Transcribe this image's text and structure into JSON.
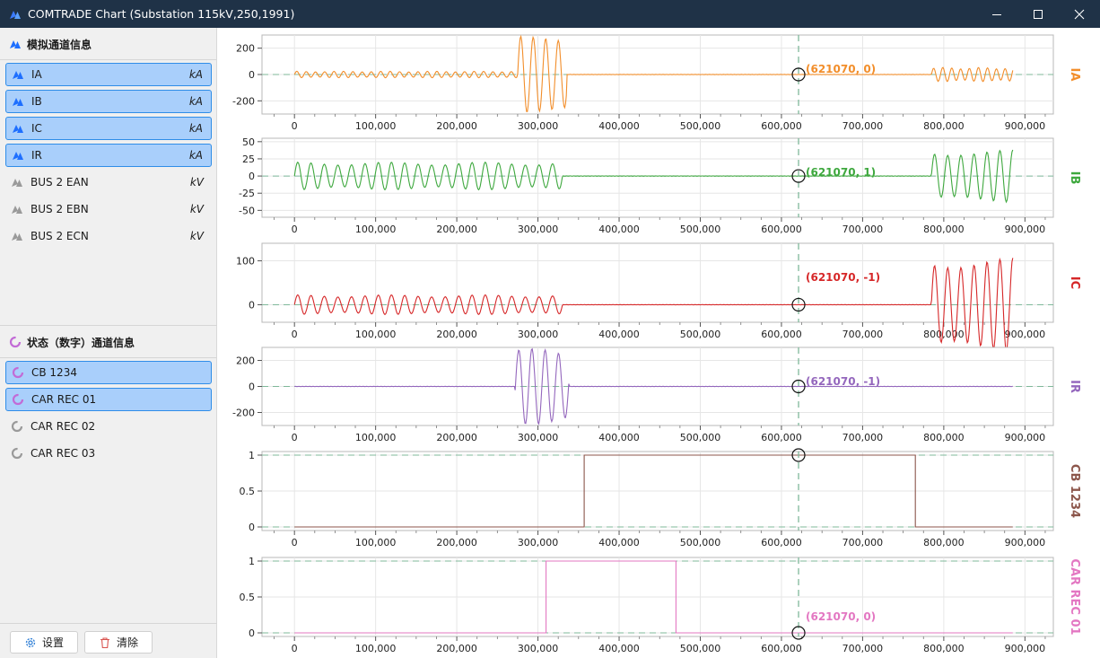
{
  "window": {
    "title": "COMTRADE Chart (Substation 115kV,250,1991)",
    "app_icon": "app-logo-icon",
    "controls": [
      "minimize-icon",
      "maximize-icon",
      "close-icon"
    ]
  },
  "sidebar": {
    "analog_header": "模拟通道信息",
    "analog_channels": [
      {
        "label": "IA",
        "unit": "kA",
        "selected": true
      },
      {
        "label": "IB",
        "unit": "kA",
        "selected": true
      },
      {
        "label": "IC",
        "unit": "kA",
        "selected": true
      },
      {
        "label": "IR",
        "unit": "kA",
        "selected": true
      },
      {
        "label": "BUS 2 EAN",
        "unit": "kV",
        "selected": false
      },
      {
        "label": "BUS 2 EBN",
        "unit": "kV",
        "selected": false
      },
      {
        "label": "BUS 2 ECN",
        "unit": "kV",
        "selected": false
      }
    ],
    "digital_header": "状态（数字）通道信息",
    "digital_channels": [
      {
        "label": "CB 1234",
        "selected": true
      },
      {
        "label": "CAR REC 01",
        "selected": true
      },
      {
        "label": "CAR REC 02",
        "selected": false
      },
      {
        "label": "CAR REC 03",
        "selected": false
      }
    ],
    "settings_label": "设置",
    "clear_label": "清除"
  },
  "colors": {
    "IA": "#f28e2b",
    "IB": "#3ea83e",
    "IC": "#d62728",
    "IR": "#9467bd",
    "CB 1234": "#8c564b",
    "CAR REC 01": "#e377c2",
    "accent": "#2f8de8",
    "cursor": "#7fb89a"
  },
  "chart_data": [
    {
      "type": "line",
      "name": "IA",
      "xlim": [
        0,
        900000
      ],
      "ylim": [
        -300,
        300
      ],
      "yticks": [
        -200,
        0,
        200
      ],
      "cursor_x": 621070,
      "cursor_label": "(621070, 0)",
      "segments": [
        {
          "x": [
            0,
            275000
          ],
          "amp": 22,
          "period": 11500
        },
        {
          "x": [
            275000,
            335000
          ],
          "amp": 260,
          "period": 15500
        },
        {
          "x": [
            785000,
            885000
          ],
          "amp": 48,
          "period": 11000
        }
      ]
    },
    {
      "type": "line",
      "name": "IB",
      "xlim": [
        0,
        900000
      ],
      "ylim": [
        -60,
        55
      ],
      "yticks": [
        -50,
        -25,
        0,
        25,
        50
      ],
      "cursor_x": 621070,
      "cursor_label": "(621070, 1)",
      "segments": [
        {
          "x": [
            0,
            330000
          ],
          "amp": 18,
          "period": 16500
        },
        {
          "x": [
            785000,
            885000
          ],
          "amp": 34,
          "period": 16000
        }
      ]
    },
    {
      "type": "line",
      "name": "IC",
      "xlim": [
        0,
        900000
      ],
      "ylim": [
        -40,
        140
      ],
      "yticks": [
        0,
        100
      ],
      "cursor_x": 621070,
      "cursor_label": "(621070, -1)",
      "segments": [
        {
          "x": [
            0,
            330000
          ],
          "amp": 20,
          "period": 16500
        },
        {
          "x": [
            785000,
            885000
          ],
          "amp": 95,
          "period": 16000
        }
      ]
    },
    {
      "type": "line",
      "name": "IR",
      "xlim": [
        0,
        900000
      ],
      "ylim": [
        -300,
        300
      ],
      "yticks": [
        -200,
        0,
        200
      ],
      "cursor_x": 621070,
      "cursor_label": "(621070, -1)",
      "segments": [
        {
          "x": [
            272000,
            338000
          ],
          "amp": 260,
          "period": 16500
        }
      ]
    },
    {
      "type": "line",
      "name": "CB 1234",
      "xlim": [
        0,
        900000
      ],
      "ylim": [
        -0.05,
        1.05
      ],
      "yticks": [
        0,
        0.5,
        1
      ],
      "cursor_x": 621070,
      "steps": [
        [
          0,
          0
        ],
        [
          357000,
          1
        ],
        [
          765000,
          0
        ],
        [
          885000,
          0
        ]
      ]
    },
    {
      "type": "line",
      "name": "CAR REC 01",
      "xlim": [
        0,
        900000
      ],
      "ylim": [
        -0.05,
        1.05
      ],
      "yticks": [
        0,
        0.5,
        1
      ],
      "cursor_x": 621070,
      "cursor_label": "(621070, 0)",
      "steps": [
        [
          0,
          0
        ],
        [
          310000,
          1
        ],
        [
          470000,
          0
        ],
        [
          885000,
          0
        ]
      ]
    }
  ],
  "x_ticks": [
    "0",
    "100,000",
    "200,000",
    "300,000",
    "400,000",
    "500,000",
    "600,000",
    "700,000",
    "800,000",
    "900,000"
  ],
  "x_tick_values": [
    0,
    100000,
    200000,
    300000,
    400000,
    500000,
    600000,
    700000,
    800000,
    900000
  ]
}
